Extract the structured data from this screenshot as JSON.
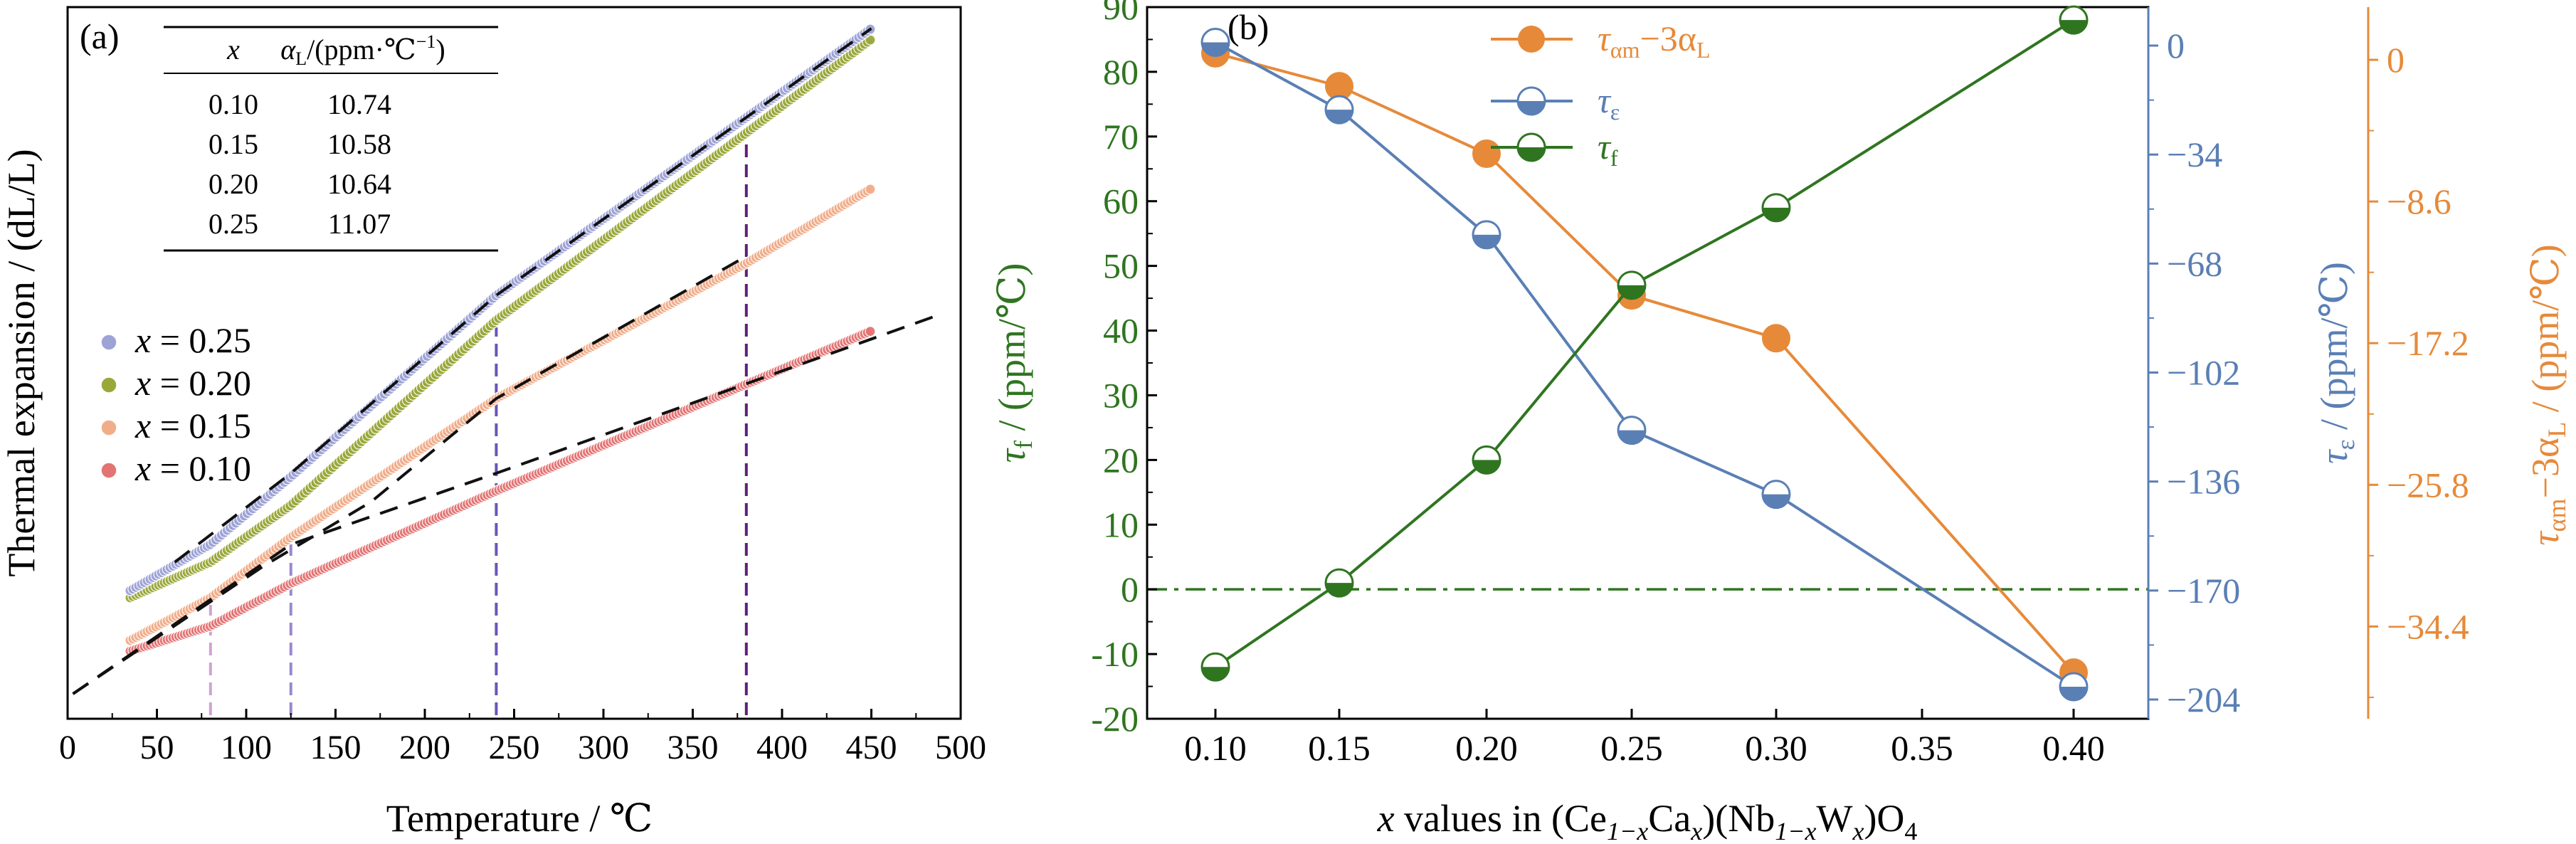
{
  "chart_data": [
    {
      "type": "scatter",
      "panel_label": "(a)",
      "xlabel": "Temperature  / ℃",
      "ylabel": "Thermal expansion / (dL/L)",
      "xlim": [
        0,
        500
      ],
      "xticks": [
        0,
        50,
        100,
        150,
        200,
        250,
        300,
        350,
        400,
        450,
        500
      ],
      "y_ticks_shown": false,
      "legend_position": "left",
      "inset_table": {
        "headers": [
          "x",
          "α_L/(ppm·℃⁻¹)"
        ],
        "rows": [
          [
            "0.10",
            "10.74"
          ],
          [
            "0.15",
            "10.58"
          ],
          [
            "0.20",
            "10.64"
          ],
          [
            "0.25",
            "11.07"
          ]
        ]
      },
      "series": [
        {
          "name": "x = 0.25",
          "color": "#9ea3d6",
          "x": [
            35,
            80,
            125,
            240,
            450
          ],
          "y": [
            0.18,
            0.245,
            0.34,
            0.595,
            0.97
          ]
        },
        {
          "name": "x = 0.20",
          "color": "#9aa83a",
          "x": [
            35,
            80,
            125,
            240,
            450
          ],
          "y": [
            0.17,
            0.22,
            0.3,
            0.56,
            0.955
          ]
        },
        {
          "name": "x = 0.15",
          "color": "#f1ad8a",
          "x": [
            35,
            80,
            125,
            240,
            380,
            450
          ],
          "y": [
            0.11,
            0.17,
            0.255,
            0.45,
            0.64,
            0.745
          ]
        },
        {
          "name": "x = 0.10",
          "color": "#e47474",
          "x": [
            35,
            80,
            125,
            240,
            380,
            450
          ],
          "y": [
            0.095,
            0.13,
            0.19,
            0.32,
            0.47,
            0.545
          ]
        }
      ],
      "transition_lines": [
        {
          "x": 80,
          "color": "#cfa3d3"
        },
        {
          "x": 125,
          "color": "#9a88cf"
        },
        {
          "x": 240,
          "color": "#6a55b8"
        },
        {
          "x": 380,
          "color": "#5d1f7a"
        }
      ]
    },
    {
      "type": "line",
      "panel_label": "(b)",
      "xlabel": "x values in (Ce1−xCax)(Nb1−xWx)O4",
      "categories": [
        "0.10",
        "0.15",
        "0.20",
        "0.25",
        "0.30",
        "0.35",
        "0.40"
      ],
      "left_axis": {
        "label": "τf / (ppm/℃)",
        "color": "#2f7520",
        "ylim": [
          -20,
          90
        ],
        "ticks": [
          -20,
          -10,
          0,
          10,
          20,
          30,
          40,
          50,
          60,
          70,
          80,
          90
        ]
      },
      "right_axis_1": {
        "label": "τε / (ppm/℃)",
        "color": "#5a7fb5",
        "ylim": [
          -210,
          12
        ],
        "ticks": [
          0,
          -34,
          -68,
          -102,
          -136,
          -170,
          -204
        ]
      },
      "right_axis_2": {
        "label": "ταm−3αL / (ppm/℃)",
        "color": "#e68a3a",
        "ylim": [
          -40,
          3.2
        ],
        "ticks": [
          0,
          -8.6,
          -17.2,
          -25.8,
          -34.4
        ]
      },
      "series": [
        {
          "name": "ταm−3αL",
          "axis": "right_axis_2",
          "color": "#e68a3a",
          "marker": "filled-circle",
          "x": [
            0.1,
            0.15,
            0.2,
            0.25,
            0.3,
            0.4
          ],
          "y": [
            0.4,
            -1.6,
            -5.7,
            -14.3,
            -16.9,
            -37.2
          ]
        },
        {
          "name": "τε",
          "axis": "right_axis_1",
          "color": "#5a7fb5",
          "marker": "half-filled-circle",
          "x": [
            0.1,
            0.15,
            0.2,
            0.25,
            0.3,
            0.4
          ],
          "y": [
            1,
            -20,
            -59,
            -120,
            -140,
            -200
          ]
        },
        {
          "name": "τf",
          "axis": "left_axis",
          "color": "#2f7520",
          "marker": "half-filled-circle",
          "x": [
            0.1,
            0.15,
            0.2,
            0.25,
            0.3,
            0.4
          ],
          "y": [
            -12,
            1,
            20,
            47,
            59,
            88
          ]
        }
      ],
      "reference_line": {
        "axis": "left_axis",
        "y": 0,
        "style": "dash-dot",
        "color": "#2f7520"
      },
      "legend_position": "top-center"
    }
  ],
  "text": {
    "a_label": "(a)",
    "b_label": "(b)",
    "a_ylabel": "Thermal expansion / (dL/L)",
    "a_xlabel": "Temperature  / ℃",
    "table_col1": "x",
    "table_col2_a": "α",
    "table_col2_sub": "L",
    "table_col2_b": "/(ppm·℃",
    "table_col2_sup": "−1",
    "table_col2_c": ")",
    "legend_a": [
      "x = 0.25",
      "x = 0.20",
      "x = 0.15",
      "x = 0.10"
    ],
    "b_left_label_main": "τ",
    "b_left_label_sub": "f",
    "b_left_label_rest": " / (ppm/℃)",
    "b_right1_label_main": "τ",
    "b_right1_label_sub": "ε",
    "b_right1_label_rest": " / (ppm/℃)",
    "b_right2_label_main": "τ",
    "b_right2_label_sub": "αm",
    "b_right2_label_mid": "−3α",
    "b_right2_label_sub2": "L",
    "b_right2_label_rest": " / (ppm/℃)",
    "b_xlabel_parts": [
      "x",
      " values in (Ce",
      "1−x",
      "Ca",
      "x",
      ")(Nb",
      "1−x",
      "W",
      "x",
      ")O",
      "4"
    ],
    "legend_b": [
      {
        "main": "τ",
        "sub": "αm",
        "mid": "−3α",
        "sub2": "L"
      },
      {
        "main": "τ",
        "sub": "ε"
      },
      {
        "main": "τ",
        "sub": "f"
      }
    ]
  }
}
